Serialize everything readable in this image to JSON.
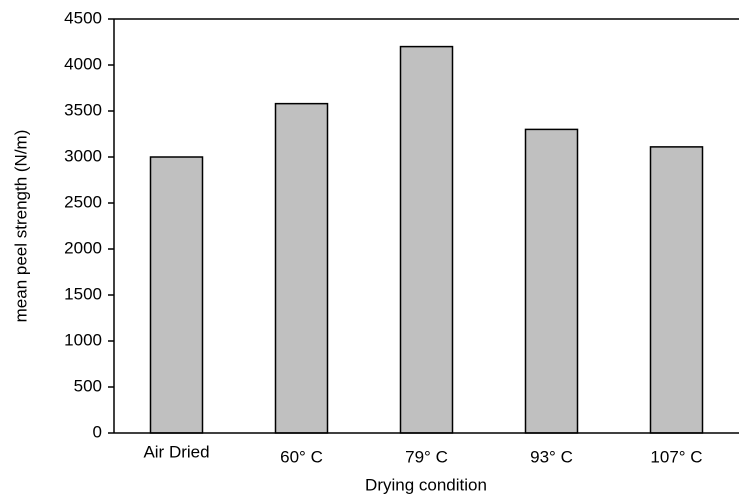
{
  "chart_data": {
    "type": "bar",
    "categories": [
      "Air Dried",
      "60° C",
      "79° C",
      "93° C",
      "107° C"
    ],
    "values": [
      3000,
      3580,
      4200,
      3300,
      3110
    ],
    "color": "#c0c0c0",
    "xlabel": "Drying condition",
    "ylabel": "mean peel strength (N/m)",
    "ylim": [
      0,
      4500
    ],
    "yticks": [
      0,
      500,
      1000,
      1500,
      2000,
      2500,
      3000,
      3500,
      4000,
      4500
    ],
    "grid": false
  }
}
